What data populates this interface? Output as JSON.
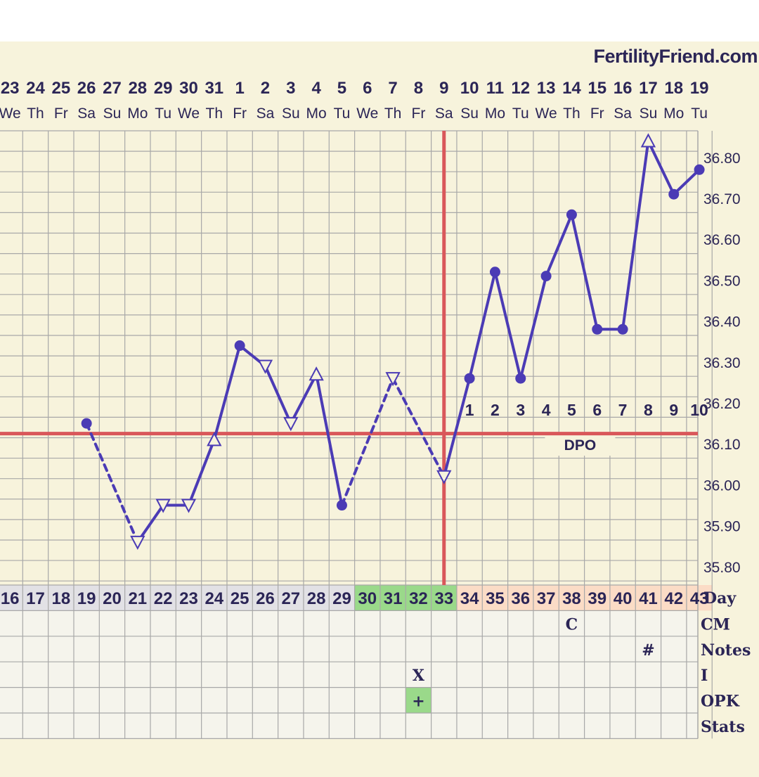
{
  "brand": "FertilityFriend.com",
  "chart_data": {
    "type": "line",
    "dates": [
      "23",
      "24",
      "25",
      "26",
      "27",
      "28",
      "29",
      "30",
      "31",
      "1",
      "2",
      "3",
      "4",
      "5",
      "6",
      "7",
      "8",
      "9",
      "10",
      "11",
      "12",
      "13",
      "14",
      "15",
      "16",
      "17",
      "18",
      "19"
    ],
    "weekdays": [
      "We",
      "Th",
      "Fr",
      "Sa",
      "Su",
      "Mo",
      "Tu",
      "We",
      "Th",
      "Fr",
      "Sa",
      "Su",
      "Mo",
      "Tu",
      "We",
      "Th",
      "Fr",
      "Sa",
      "Su",
      "Mo",
      "Tu",
      "We",
      "Th",
      "Fr",
      "Sa",
      "Su",
      "Mo",
      "Tu"
    ],
    "cycle_days": [
      "16",
      "17",
      "18",
      "19",
      "20",
      "21",
      "22",
      "23",
      "24",
      "25",
      "26",
      "27",
      "28",
      "29",
      "30",
      "31",
      "32",
      "33",
      "34",
      "35",
      "36",
      "37",
      "38",
      "39",
      "40",
      "41",
      "42",
      "43"
    ],
    "y_ticks": [
      "35.80",
      "35.90",
      "36.00",
      "36.10",
      "36.20",
      "36.30",
      "36.40",
      "36.50",
      "36.60",
      "36.70",
      "36.80"
    ],
    "ylim": [
      35.755,
      36.865
    ],
    "temperatures": [
      {
        "cd": 19,
        "temp": 36.15,
        "marker": "dot"
      },
      {
        "cd": 21,
        "temp": 35.86,
        "marker": "triangle-down"
      },
      {
        "cd": 22,
        "temp": 35.95,
        "marker": "triangle-down"
      },
      {
        "cd": 23,
        "temp": 35.95,
        "marker": "triangle-down"
      },
      {
        "cd": 24,
        "temp": 36.11,
        "marker": "triangle-up"
      },
      {
        "cd": 25,
        "temp": 36.34,
        "marker": "dot"
      },
      {
        "cd": 26,
        "temp": 36.29,
        "marker": "triangle-down"
      },
      {
        "cd": 27,
        "temp": 36.15,
        "marker": "triangle-down"
      },
      {
        "cd": 28,
        "temp": 36.27,
        "marker": "triangle-up"
      },
      {
        "cd": 29,
        "temp": 35.95,
        "marker": "dot"
      },
      {
        "cd": 31,
        "temp": 36.26,
        "marker": "triangle-down"
      },
      {
        "cd": 33,
        "temp": 36.02,
        "marker": "triangle-down"
      },
      {
        "cd": 34,
        "temp": 36.26,
        "marker": "dot"
      },
      {
        "cd": 35,
        "temp": 36.52,
        "marker": "dot"
      },
      {
        "cd": 36,
        "temp": 36.26,
        "marker": "dot"
      },
      {
        "cd": 37,
        "temp": 36.51,
        "marker": "dot"
      },
      {
        "cd": 38,
        "temp": 36.66,
        "marker": "dot"
      },
      {
        "cd": 39,
        "temp": 36.38,
        "marker": "dot"
      },
      {
        "cd": 40,
        "temp": 36.38,
        "marker": "dot"
      },
      {
        "cd": 41,
        "temp": 36.84,
        "marker": "triangle-up"
      },
      {
        "cd": 42,
        "temp": 36.71,
        "marker": "dot"
      },
      {
        "cd": 43,
        "temp": 36.77,
        "marker": "dot"
      }
    ],
    "segments": [
      {
        "from": 19,
        "to": 21,
        "style": "dashed"
      },
      {
        "from": 21,
        "to": 22,
        "style": "solid"
      },
      {
        "from": 22,
        "to": 23,
        "style": "solid"
      },
      {
        "from": 23,
        "to": 24,
        "style": "solid"
      },
      {
        "from": 24,
        "to": 25,
        "style": "solid"
      },
      {
        "from": 25,
        "to": 26,
        "style": "solid"
      },
      {
        "from": 26,
        "to": 27,
        "style": "solid"
      },
      {
        "from": 27,
        "to": 28,
        "style": "solid"
      },
      {
        "from": 28,
        "to": 29,
        "style": "solid"
      },
      {
        "from": 29,
        "to": 31,
        "style": "dashed"
      },
      {
        "from": 31,
        "to": 33,
        "style": "dashed"
      },
      {
        "from": 33,
        "to": 34,
        "style": "solid"
      },
      {
        "from": 34,
        "to": 35,
        "style": "solid"
      },
      {
        "from": 35,
        "to": 36,
        "style": "solid"
      },
      {
        "from": 36,
        "to": 37,
        "style": "solid"
      },
      {
        "from": 37,
        "to": 38,
        "style": "solid"
      },
      {
        "from": 38,
        "to": 39,
        "style": "solid"
      },
      {
        "from": 39,
        "to": 40,
        "style": "solid"
      },
      {
        "from": 40,
        "to": 41,
        "style": "solid"
      },
      {
        "from": 41,
        "to": 42,
        "style": "solid"
      },
      {
        "from": 42,
        "to": 43,
        "style": "solid"
      }
    ],
    "coverline_temp": 36.125,
    "ovulation_cd": 33,
    "dpo": {
      "label": "DPO",
      "days": [
        {
          "cd": 34,
          "n": "1"
        },
        {
          "cd": 35,
          "n": "2"
        },
        {
          "cd": 36,
          "n": "3"
        },
        {
          "cd": 37,
          "n": "4"
        },
        {
          "cd": 38,
          "n": "5"
        },
        {
          "cd": 39,
          "n": "6"
        },
        {
          "cd": 40,
          "n": "7"
        },
        {
          "cd": 41,
          "n": "8"
        },
        {
          "cd": 42,
          "n": "9"
        },
        {
          "cd": 43,
          "n": "10"
        }
      ]
    },
    "day_label": "Day",
    "fertile_days": [
      30,
      31,
      32,
      33
    ],
    "luteal_days": [
      34,
      35,
      36,
      37,
      38,
      39,
      40,
      41,
      42,
      43
    ],
    "rows": [
      "CM",
      "Notes",
      "I",
      "OPK",
      "Stats"
    ],
    "row_marks": [
      {
        "row": "CM",
        "cd": 38,
        "text": "C"
      },
      {
        "row": "Notes",
        "cd": 41,
        "text": "#"
      },
      {
        "row": "I",
        "cd": 32,
        "text": "X"
      },
      {
        "row": "OPK",
        "cd": 32,
        "text": "+",
        "highlight": true
      }
    ],
    "colors": {
      "line": "#4b3bb5",
      "coverline": "#d9575a",
      "fertile": "#9ad98a",
      "luteal": "#fbdcc6",
      "day_cell": "#e2e1e5",
      "grid": "#a8a8a8",
      "background": "#f7f3dc",
      "text": "#2b2556"
    }
  }
}
